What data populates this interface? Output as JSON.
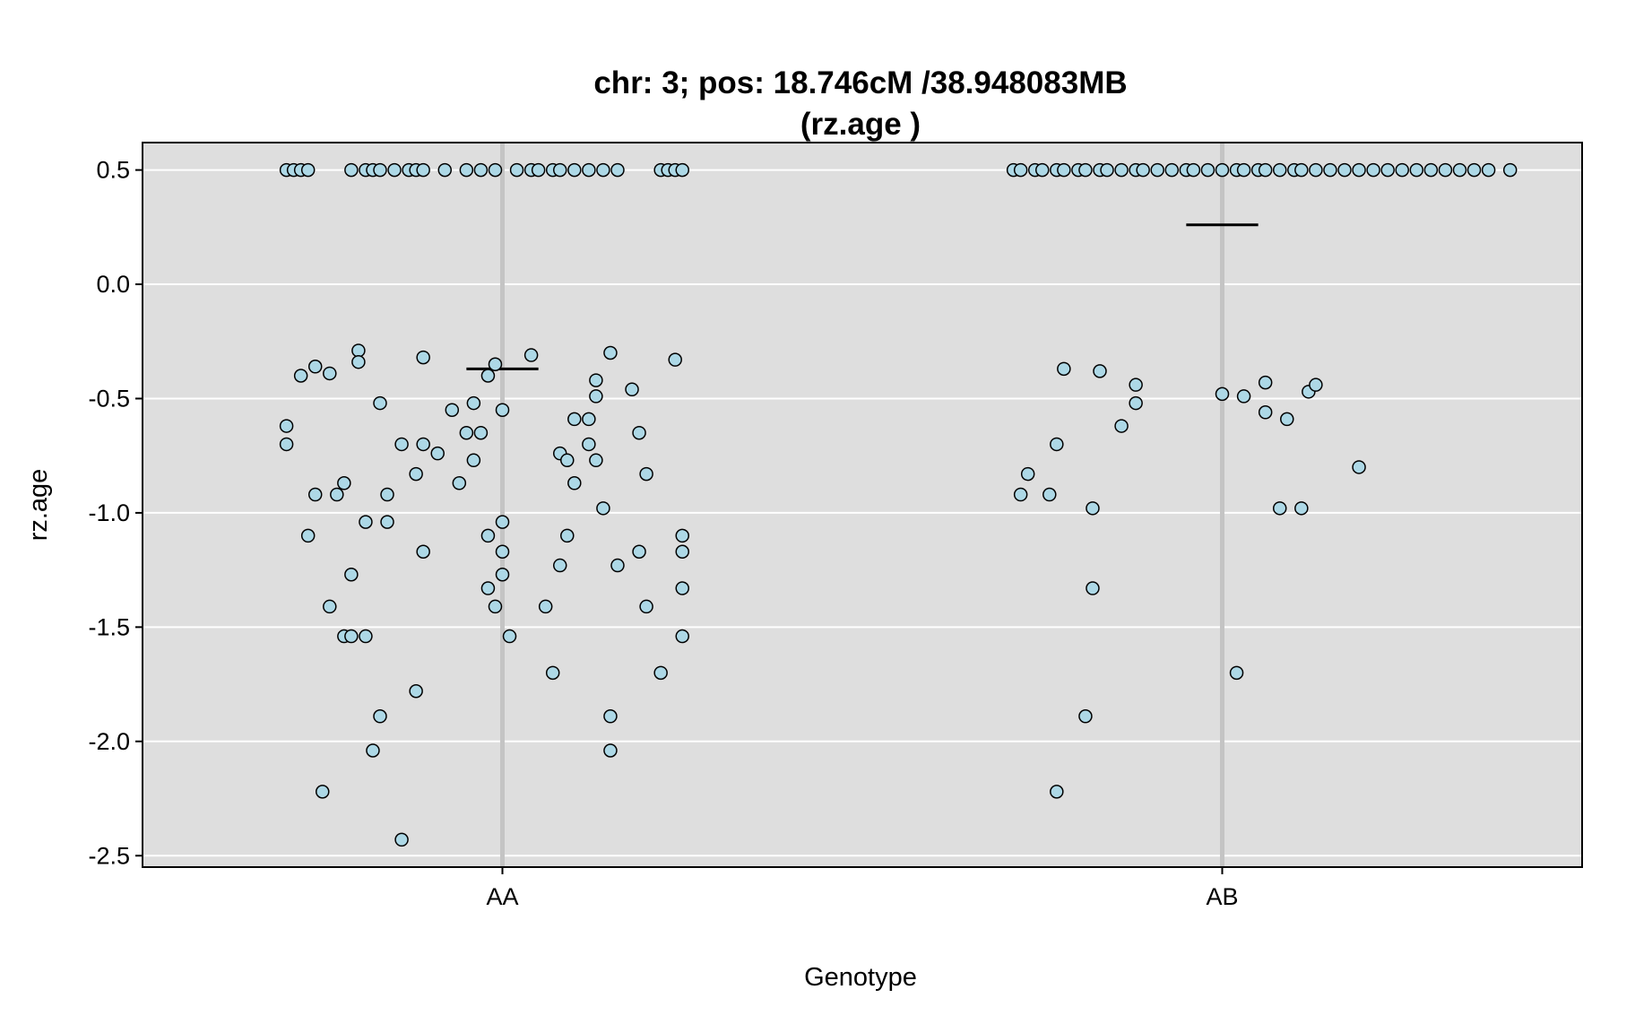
{
  "chart_data": {
    "type": "scatter",
    "title": "chr: 3; pos: 18.746cM /38.948083MB",
    "subtitle": "(rz.age )",
    "xlabel": "Genotype",
    "ylabel": "rz.age",
    "categories": [
      "AA",
      "AB"
    ],
    "ylim": [
      -2.55,
      0.62
    ],
    "yticks": [
      0.5,
      0.0,
      -0.5,
      -1.0,
      -1.5,
      -2.0,
      -2.5
    ],
    "ytick_labels": [
      "0.5",
      "0.0",
      "-0.5",
      "-1.0",
      "-1.5",
      "-2.0",
      "-2.5"
    ],
    "grid": true,
    "colors": {
      "panel": "#dedede",
      "grid": "#ffffff",
      "point_fill": "#add8e6",
      "point_stroke": "#000000",
      "center_line": "#c4c4c4",
      "mean_line": "#000000"
    },
    "means": [
      -0.37,
      0.26
    ],
    "points": [
      {
        "x": 0.7,
        "y": 0.5
      },
      {
        "x": 0.71,
        "y": 0.5
      },
      {
        "x": 0.72,
        "y": 0.5
      },
      {
        "x": 0.73,
        "y": 0.5
      },
      {
        "x": 0.79,
        "y": 0.5
      },
      {
        "x": 0.81,
        "y": 0.5
      },
      {
        "x": 0.82,
        "y": 0.5
      },
      {
        "x": 0.83,
        "y": 0.5
      },
      {
        "x": 0.85,
        "y": 0.5
      },
      {
        "x": 0.87,
        "y": 0.5
      },
      {
        "x": 0.88,
        "y": 0.5
      },
      {
        "x": 0.89,
        "y": 0.5
      },
      {
        "x": 0.92,
        "y": 0.5
      },
      {
        "x": 0.95,
        "y": 0.5
      },
      {
        "x": 0.97,
        "y": 0.5
      },
      {
        "x": 0.99,
        "y": 0.5
      },
      {
        "x": 1.02,
        "y": 0.5
      },
      {
        "x": 1.04,
        "y": 0.5
      },
      {
        "x": 1.05,
        "y": 0.5
      },
      {
        "x": 1.07,
        "y": 0.5
      },
      {
        "x": 1.08,
        "y": 0.5
      },
      {
        "x": 1.1,
        "y": 0.5
      },
      {
        "x": 1.12,
        "y": 0.5
      },
      {
        "x": 1.14,
        "y": 0.5
      },
      {
        "x": 1.16,
        "y": 0.5
      },
      {
        "x": 1.22,
        "y": 0.5
      },
      {
        "x": 1.23,
        "y": 0.5
      },
      {
        "x": 1.24,
        "y": 0.5
      },
      {
        "x": 1.25,
        "y": 0.5
      },
      {
        "x": 0.72,
        "y": -0.4
      },
      {
        "x": 0.7,
        "y": -0.62
      },
      {
        "x": 0.7,
        "y": -0.7
      },
      {
        "x": 0.74,
        "y": -0.36
      },
      {
        "x": 0.76,
        "y": -0.39
      },
      {
        "x": 0.74,
        "y": -0.92
      },
      {
        "x": 0.73,
        "y": -1.1
      },
      {
        "x": 0.77,
        "y": -0.92
      },
      {
        "x": 0.78,
        "y": -0.87
      },
      {
        "x": 0.79,
        "y": -1.27
      },
      {
        "x": 0.76,
        "y": -1.41
      },
      {
        "x": 0.78,
        "y": -1.54
      },
      {
        "x": 0.79,
        "y": -1.54
      },
      {
        "x": 0.81,
        "y": -1.54
      },
      {
        "x": 0.75,
        "y": -2.22
      },
      {
        "x": 0.8,
        "y": -0.29
      },
      {
        "x": 0.8,
        "y": -0.34
      },
      {
        "x": 0.83,
        "y": -0.52
      },
      {
        "x": 0.84,
        "y": -0.92
      },
      {
        "x": 0.81,
        "y": -1.04
      },
      {
        "x": 0.84,
        "y": -1.04
      },
      {
        "x": 0.83,
        "y": -1.89
      },
      {
        "x": 0.82,
        "y": -2.04
      },
      {
        "x": 0.86,
        "y": -2.43
      },
      {
        "x": 0.86,
        "y": -0.7
      },
      {
        "x": 0.89,
        "y": -0.7
      },
      {
        "x": 0.88,
        "y": -0.83
      },
      {
        "x": 0.89,
        "y": -0.32
      },
      {
        "x": 0.91,
        "y": -0.74
      },
      {
        "x": 0.89,
        "y": -1.17
      },
      {
        "x": 0.88,
        "y": -1.78
      },
      {
        "x": 0.93,
        "y": -0.55
      },
      {
        "x": 0.95,
        "y": -0.65
      },
      {
        "x": 0.94,
        "y": -0.87
      },
      {
        "x": 0.96,
        "y": -0.77
      },
      {
        "x": 0.96,
        "y": -0.52
      },
      {
        "x": 0.97,
        "y": -0.65
      },
      {
        "x": 0.98,
        "y": -0.4
      },
      {
        "x": 0.99,
        "y": -0.35
      },
      {
        "x": 1.0,
        "y": -0.55
      },
      {
        "x": 0.98,
        "y": -1.1
      },
      {
        "x": 1.0,
        "y": -1.17
      },
      {
        "x": 1.0,
        "y": -1.04
      },
      {
        "x": 1.0,
        "y": -1.27
      },
      {
        "x": 0.98,
        "y": -1.33
      },
      {
        "x": 0.99,
        "y": -1.41
      },
      {
        "x": 1.01,
        "y": -1.54
      },
      {
        "x": 1.04,
        "y": -0.31
      },
      {
        "x": 1.06,
        "y": -1.41
      },
      {
        "x": 1.07,
        "y": -1.7
      },
      {
        "x": 1.08,
        "y": -0.74
      },
      {
        "x": 1.09,
        "y": -0.77
      },
      {
        "x": 1.09,
        "y": -1.1
      },
      {
        "x": 1.08,
        "y": -1.23
      },
      {
        "x": 1.1,
        "y": -0.59
      },
      {
        "x": 1.1,
        "y": -0.87
      },
      {
        "x": 1.12,
        "y": -0.59
      },
      {
        "x": 1.12,
        "y": -0.7
      },
      {
        "x": 1.13,
        "y": -0.42
      },
      {
        "x": 1.13,
        "y": -0.49
      },
      {
        "x": 1.13,
        "y": -0.77
      },
      {
        "x": 1.14,
        "y": -0.98
      },
      {
        "x": 1.15,
        "y": -0.3
      },
      {
        "x": 1.18,
        "y": -0.46
      },
      {
        "x": 1.19,
        "y": -0.65
      },
      {
        "x": 1.2,
        "y": -0.83
      },
      {
        "x": 1.19,
        "y": -1.17
      },
      {
        "x": 1.16,
        "y": -1.23
      },
      {
        "x": 1.2,
        "y": -1.41
      },
      {
        "x": 1.22,
        "y": -1.7
      },
      {
        "x": 1.15,
        "y": -1.89
      },
      {
        "x": 1.15,
        "y": -2.04
      },
      {
        "x": 1.24,
        "y": -0.33
      },
      {
        "x": 1.25,
        "y": -1.1
      },
      {
        "x": 1.25,
        "y": -1.17
      },
      {
        "x": 1.25,
        "y": -1.33
      },
      {
        "x": 1.25,
        "y": -1.54
      },
      {
        "x": 1.71,
        "y": 0.5
      },
      {
        "x": 1.72,
        "y": 0.5
      },
      {
        "x": 1.74,
        "y": 0.5
      },
      {
        "x": 1.75,
        "y": 0.5
      },
      {
        "x": 1.77,
        "y": 0.5
      },
      {
        "x": 1.78,
        "y": 0.5
      },
      {
        "x": 1.8,
        "y": 0.5
      },
      {
        "x": 1.81,
        "y": 0.5
      },
      {
        "x": 1.83,
        "y": 0.5
      },
      {
        "x": 1.84,
        "y": 0.5
      },
      {
        "x": 1.86,
        "y": 0.5
      },
      {
        "x": 1.88,
        "y": 0.5
      },
      {
        "x": 1.89,
        "y": 0.5
      },
      {
        "x": 1.91,
        "y": 0.5
      },
      {
        "x": 1.93,
        "y": 0.5
      },
      {
        "x": 1.95,
        "y": 0.5
      },
      {
        "x": 1.96,
        "y": 0.5
      },
      {
        "x": 1.98,
        "y": 0.5
      },
      {
        "x": 2.0,
        "y": 0.5
      },
      {
        "x": 2.02,
        "y": 0.5
      },
      {
        "x": 2.03,
        "y": 0.5
      },
      {
        "x": 2.05,
        "y": 0.5
      },
      {
        "x": 2.06,
        "y": 0.5
      },
      {
        "x": 2.08,
        "y": 0.5
      },
      {
        "x": 2.1,
        "y": 0.5
      },
      {
        "x": 2.11,
        "y": 0.5
      },
      {
        "x": 2.13,
        "y": 0.5
      },
      {
        "x": 2.15,
        "y": 0.5
      },
      {
        "x": 2.17,
        "y": 0.5
      },
      {
        "x": 2.19,
        "y": 0.5
      },
      {
        "x": 2.21,
        "y": 0.5
      },
      {
        "x": 2.23,
        "y": 0.5
      },
      {
        "x": 2.25,
        "y": 0.5
      },
      {
        "x": 2.27,
        "y": 0.5
      },
      {
        "x": 2.29,
        "y": 0.5
      },
      {
        "x": 2.31,
        "y": 0.5
      },
      {
        "x": 2.33,
        "y": 0.5
      },
      {
        "x": 2.35,
        "y": 0.5
      },
      {
        "x": 2.37,
        "y": 0.5
      },
      {
        "x": 2.4,
        "y": 0.5
      },
      {
        "x": 1.73,
        "y": -0.83
      },
      {
        "x": 1.72,
        "y": -0.92
      },
      {
        "x": 1.76,
        "y": -0.92
      },
      {
        "x": 1.78,
        "y": -0.37
      },
      {
        "x": 1.77,
        "y": -0.7
      },
      {
        "x": 1.77,
        "y": -2.22
      },
      {
        "x": 1.81,
        "y": -1.89
      },
      {
        "x": 1.82,
        "y": -0.98
      },
      {
        "x": 1.82,
        "y": -1.33
      },
      {
        "x": 1.83,
        "y": -0.38
      },
      {
        "x": 1.86,
        "y": -0.62
      },
      {
        "x": 1.88,
        "y": -0.52
      },
      {
        "x": 1.88,
        "y": -0.44
      },
      {
        "x": 2.0,
        "y": -0.48
      },
      {
        "x": 2.03,
        "y": -0.49
      },
      {
        "x": 2.02,
        "y": -1.7
      },
      {
        "x": 2.06,
        "y": -0.43
      },
      {
        "x": 2.06,
        "y": -0.56
      },
      {
        "x": 2.08,
        "y": -0.98
      },
      {
        "x": 2.09,
        "y": -0.59
      },
      {
        "x": 2.11,
        "y": -0.98
      },
      {
        "x": 2.12,
        "y": -0.47
      },
      {
        "x": 2.13,
        "y": -0.44
      },
      {
        "x": 2.19,
        "y": -0.8
      }
    ]
  }
}
